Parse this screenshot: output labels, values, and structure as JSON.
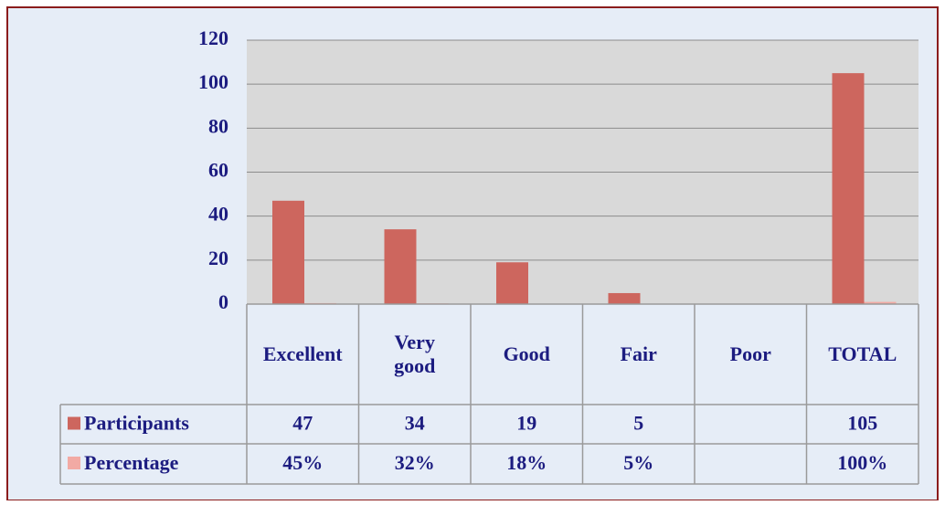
{
  "chart_data": {
    "type": "bar",
    "categories": [
      "Excellent",
      "Very good",
      "Good",
      "Fair",
      "Poor",
      "TOTAL"
    ],
    "series": [
      {
        "name": "Participants",
        "color": "#cd665e",
        "values": [
          47,
          34,
          19,
          5,
          null,
          105
        ]
      },
      {
        "name": "Percentage",
        "color": "#f2aaa4",
        "values": [
          0.45,
          0.32,
          0.18,
          0.05,
          null,
          1
        ],
        "value_labels": [
          "45%",
          "32%",
          "18%",
          "5%",
          null,
          "100%"
        ]
      }
    ],
    "ylim": [
      0,
      120
    ],
    "yticks": [
      0,
      20,
      40,
      60,
      80,
      100,
      120
    ],
    "grid": true
  }
}
